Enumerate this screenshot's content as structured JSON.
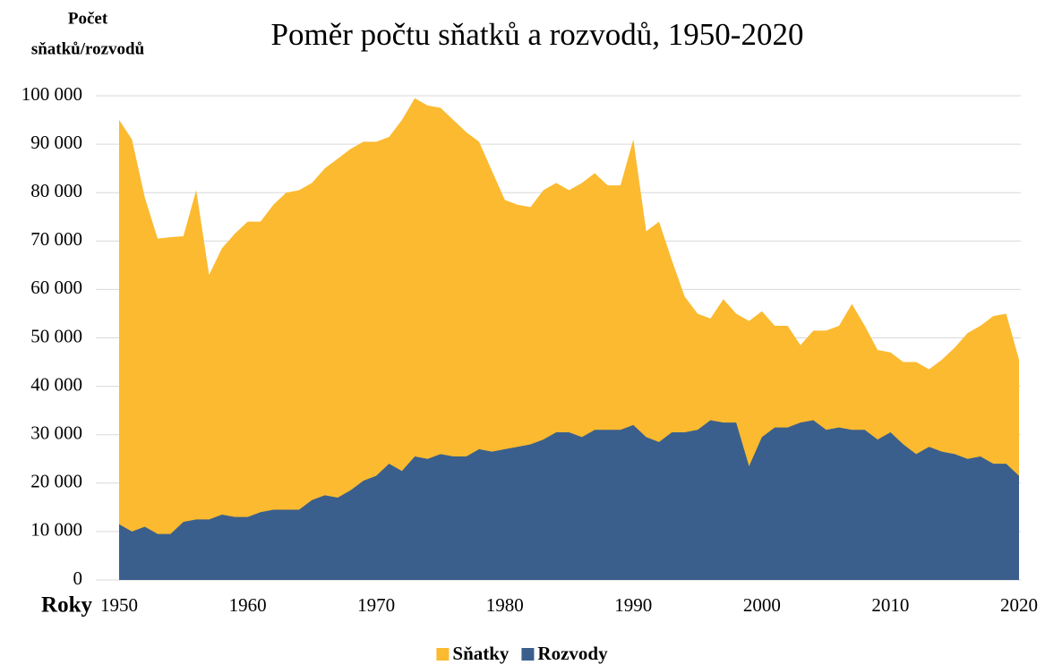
{
  "chart_data": {
    "type": "area",
    "title": "Poměr počtu sňatků a rozvodů, 1950-2020",
    "y_label": [
      "Počet",
      "sňatků/rozvodů"
    ],
    "x_label": "Roky",
    "x": [
      1950,
      1951,
      1952,
      1953,
      1954,
      1955,
      1956,
      1957,
      1958,
      1959,
      1960,
      1961,
      1962,
      1963,
      1964,
      1965,
      1966,
      1967,
      1968,
      1969,
      1970,
      1971,
      1972,
      1973,
      1974,
      1975,
      1976,
      1977,
      1978,
      1979,
      1980,
      1981,
      1982,
      1983,
      1984,
      1985,
      1986,
      1987,
      1988,
      1989,
      1990,
      1991,
      1992,
      1993,
      1994,
      1995,
      1996,
      1997,
      1998,
      1999,
      2000,
      2001,
      2002,
      2003,
      2004,
      2005,
      2006,
      2007,
      2008,
      2009,
      2010,
      2011,
      2012,
      2013,
      2014,
      2015,
      2016,
      2017,
      2018,
      2019,
      2020
    ],
    "series": [
      {
        "name": "Sňatky",
        "color": "#fbba30",
        "values": [
          95000,
          91000,
          79000,
          70500,
          70800,
          71000,
          80500,
          63000,
          68500,
          71500,
          74000,
          74000,
          77500,
          80000,
          80500,
          82000,
          85000,
          87000,
          89000,
          90500,
          90500,
          91500,
          95000,
          99500,
          98000,
          97500,
          95000,
          92500,
          90500,
          84500,
          78500,
          77500,
          77000,
          80500,
          82000,
          80500,
          82000,
          84000,
          81500,
          81500,
          91000,
          72000,
          74000,
          66000,
          58500,
          55000,
          54000,
          58000,
          55000,
          53500,
          55500,
          52500,
          52500,
          48500,
          51500,
          51500,
          52500,
          57000,
          52500,
          47500,
          47000,
          45000,
          45000,
          43500,
          45500,
          48000,
          51000,
          52500,
          54500,
          55000,
          45500
        ]
      },
      {
        "name": "Rozvody",
        "color": "#3a5f8c",
        "values": [
          11500,
          10000,
          11000,
          9500,
          9500,
          12000,
          12500,
          12500,
          13500,
          13000,
          13000,
          14000,
          14500,
          14500,
          14500,
          16500,
          17500,
          17000,
          18500,
          20500,
          21500,
          24000,
          22500,
          25500,
          25000,
          26000,
          25500,
          25500,
          27000,
          26500,
          27000,
          27500,
          28000,
          29000,
          30500,
          30500,
          29500,
          31000,
          31000,
          31000,
          32000,
          29500,
          28500,
          30500,
          30500,
          31000,
          33000,
          32500,
          32500,
          23500,
          29500,
          31500,
          31500,
          32500,
          33000,
          31000,
          31500,
          31000,
          31000,
          29000,
          30500,
          28000,
          26000,
          27500,
          26500,
          26000,
          25000,
          25500,
          24000,
          24000,
          21500
        ]
      }
    ],
    "xlim": [
      1950,
      2020
    ],
    "xticks": [
      1950,
      1960,
      1970,
      1980,
      1990,
      2000,
      2010,
      2020
    ],
    "ylim": [
      0,
      100000
    ],
    "yticks": [
      0,
      {
        "value": 10000,
        "label": "10 000"
      },
      {
        "value": 20000,
        "label": "20 000"
      },
      {
        "value": 30000,
        "label": "30 000"
      },
      {
        "value": 40000,
        "label": "40 000"
      },
      {
        "value": 50000,
        "label": "50 000"
      },
      {
        "value": 60000,
        "label": "60 000"
      },
      {
        "value": 70000,
        "label": "70 000"
      },
      {
        "value": 80000,
        "label": "80 000"
      },
      {
        "value": 90000,
        "label": "90 000"
      },
      {
        "value": 100000,
        "label": "100 000"
      }
    ],
    "grid": true,
    "legend": "bottom"
  }
}
